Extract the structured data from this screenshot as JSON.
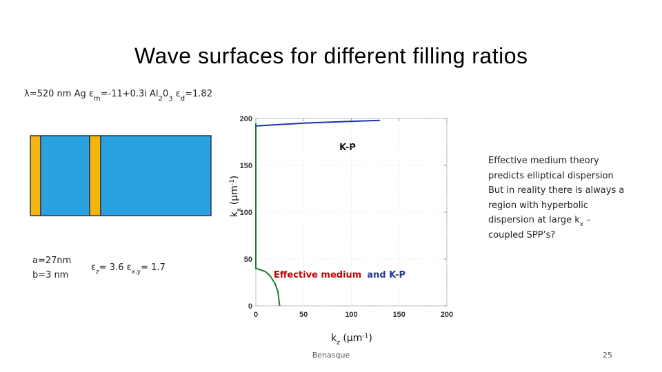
{
  "title": "Wave surfaces for different filling ratios",
  "parameters": [
    "λ=520 nm   Ag  ε",
    "m",
    "=-11+0.3i Al",
    "2",
    "0",
    "3",
    " ε",
    "d",
    "=1.82"
  ],
  "layer_parameters": {
    "a": "a=27nm",
    "b": "b=3 nm",
    "eps": [
      "ε",
      "z",
      "= 3.6  ε",
      "x,y",
      "= 1.7"
    ]
  },
  "paragraph": [
    "Effective medium theory",
    "predicts elliptical dispersion",
    "But in reality there is always a",
    "region with hyperbolic",
    "dispersion at large k",
    "x",
    " –",
    "coupled SPP’s?"
  ],
  "footer": "Benasque",
  "page_number": "25",
  "chart_data": {
    "type": "line",
    "xlabel": [
      "k",
      "z",
      " (μm",
      "-1",
      ")"
    ],
    "ylabel": [
      "k",
      "x",
      " (μm",
      "-1",
      ")"
    ],
    "annotations": [
      "K-P",
      "Effective medium",
      "and K-P"
    ],
    "xlim": [
      0,
      200
    ],
    "ylim": [
      0,
      200
    ],
    "xticks": [
      0,
      50,
      100,
      150,
      200
    ],
    "yticks": [
      0,
      50,
      100,
      150,
      200
    ],
    "grid": true,
    "series": [
      {
        "color": "#1a2fb0",
        "x": [
          0,
          50,
          100,
          130
        ],
        "values": [
          192,
          195,
          197,
          198
        ]
      },
      {
        "color": "#1e7a2a",
        "x": [
          0,
          0,
          0,
          10,
          15,
          20,
          23,
          25
        ],
        "values": [
          195,
          120,
          40,
          36.7,
          32,
          24,
          15.7,
          0
        ]
      }
    ]
  }
}
